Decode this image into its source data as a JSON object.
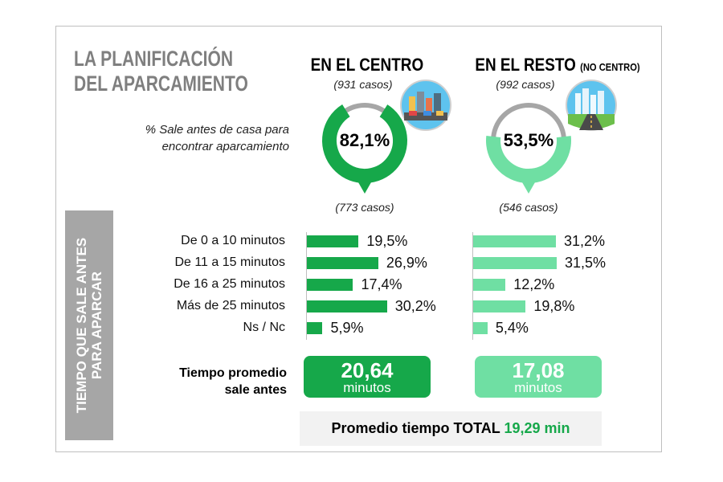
{
  "title_line1": "LA PLANIFICACIÓN",
  "title_line2": "DEL APARCAMIENTO",
  "question_line1": "% Sale antes de casa para",
  "question_line2": "encontrar aparcamiento",
  "colors": {
    "centro": "#16a84a",
    "resto": "#6fdfa3",
    "ring_grey": "#a6a6a6",
    "panel_grey": "#a6a6a6",
    "total_value": "#16a84a"
  },
  "icons": {
    "centro": "city-traffic-icon",
    "resto": "city-road-icon"
  },
  "vertical_label_line1": "TIEMPO QUE SALE ANTES",
  "vertical_label_line2": "PARA APARCAR",
  "avg_label_line1": "Tiempo promedio",
  "avg_label_line2": "sale antes",
  "total_label": "Promedio tiempo TOTAL",
  "total_value": "19,29 min",
  "chart_data": [
    {
      "type": "pie",
      "name": "EN EL CENTRO",
      "header": "EN EL CENTRO",
      "header_suffix": "",
      "cases_top": "(931 casos)",
      "cases_bottom": "(773 casos)",
      "value": 82.1,
      "value_label": "82,1%"
    },
    {
      "type": "pie",
      "name": "EN EL RESTO (NO CENTRO)",
      "header": "EN EL RESTO",
      "header_suffix": "(NO CENTRO)",
      "cases_top": "(992 casos)",
      "cases_bottom": "(546 casos)",
      "value": 53.5,
      "value_label": "53,5%"
    },
    {
      "type": "bar",
      "orientation": "horizontal",
      "categories": [
        "De 0 a 10 minutos",
        "De 11 a 15 minutos",
        "De 16 a 25 minutos",
        "Más de 25 minutos",
        "Ns / Nc"
      ],
      "series": [
        {
          "name": "EN EL CENTRO",
          "values": [
            19.5,
            26.9,
            17.4,
            30.2,
            5.9
          ],
          "labels": [
            "19,5%",
            "26,9%",
            "17,4%",
            "30,2%",
            "5,9%"
          ],
          "average_value": "20,64",
          "average_unit": "minutos"
        },
        {
          "name": "EN EL RESTO (NO CENTRO)",
          "values": [
            31.2,
            31.5,
            12.2,
            19.8,
            5.4
          ],
          "labels": [
            "31,2%",
            "31,5%",
            "12,2%",
            "19,8%",
            "5,4%"
          ],
          "average_value": "17,08",
          "average_unit": "minutos"
        }
      ],
      "xlim": [
        0,
        35
      ]
    }
  ]
}
